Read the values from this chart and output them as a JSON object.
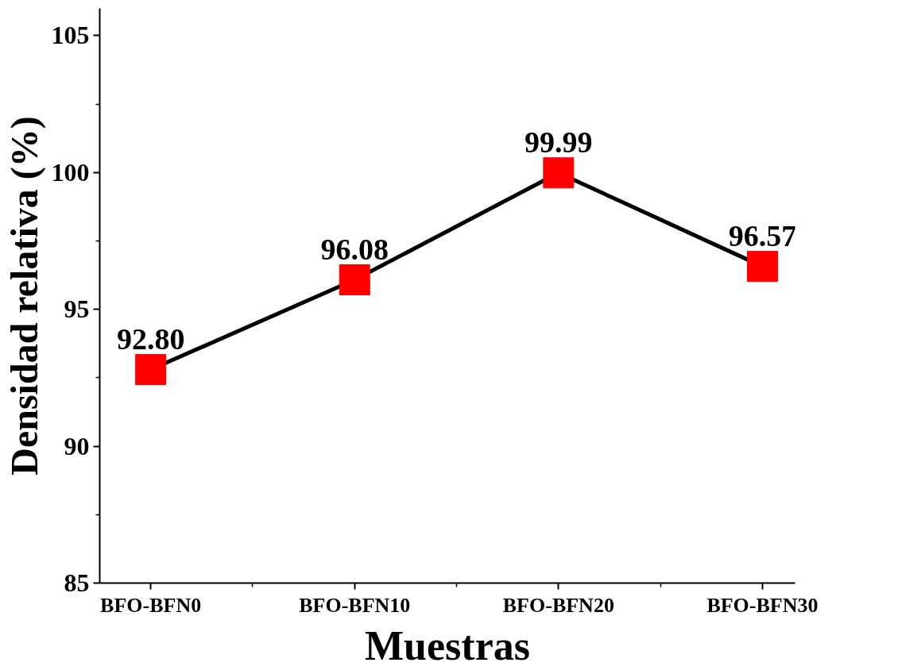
{
  "chart_data": {
    "type": "line",
    "xlabel": "Muestras",
    "ylabel": "Densidad relativa (%)",
    "categories": [
      "BFO-BFN0",
      "BFO-BFN10",
      "BFO-BFN20",
      "BFO-BFN30"
    ],
    "series": [
      {
        "color": "#ff0000",
        "values": [
          92.8,
          96.08,
          99.99,
          96.57
        ]
      }
    ],
    "value_labels": [
      "92.80",
      "96.08",
      "99.99",
      "96.57"
    ],
    "ylim": [
      85,
      106
    ],
    "yticks": [
      85,
      90,
      95,
      100,
      105
    ],
    "marker": "square",
    "line_style": "solid",
    "grid": false
  }
}
